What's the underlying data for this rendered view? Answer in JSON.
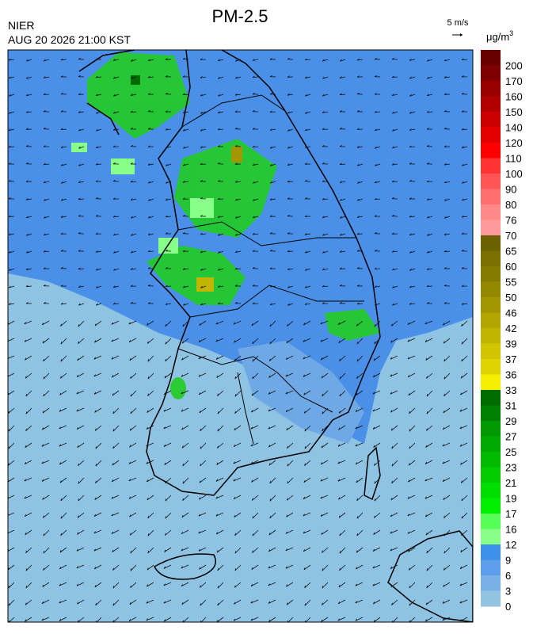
{
  "header": {
    "title": "PM-2.5",
    "agency": "NIER",
    "datetime": "AUG 20 2026 21:00 KST",
    "wind_scale": "5 m/s",
    "unit": "μg/m",
    "unit_exp": "3"
  },
  "colorbar": {
    "levels": [
      200,
      170,
      160,
      150,
      140,
      120,
      110,
      100,
      90,
      80,
      76,
      70,
      65,
      60,
      55,
      50,
      46,
      42,
      39,
      37,
      36,
      33,
      31,
      29,
      27,
      25,
      23,
      21,
      19,
      17,
      16,
      12,
      9,
      6,
      3,
      0
    ],
    "colors": [
      "#690000",
      "#7f0000",
      "#990000",
      "#b20000",
      "#cc0000",
      "#e50000",
      "#ff0000",
      "#ff3333",
      "#ff5555",
      "#ff6f6f",
      "#ff8888",
      "#ff9999",
      "#6b6100",
      "#7a6f00",
      "#857a00",
      "#948800",
      "#a39700",
      "#b3a600",
      "#c2b500",
      "#d1c400",
      "#e0d400",
      "#f5f000",
      "#006b00",
      "#008000",
      "#009900",
      "#00aa00",
      "#00bb00",
      "#00cc00",
      "#00dd00",
      "#00ee00",
      "#55ff55",
      "#88ff88",
      "#3d8fe8",
      "#5c9eec",
      "#78b0e8",
      "#92c3e0"
    ]
  }
}
